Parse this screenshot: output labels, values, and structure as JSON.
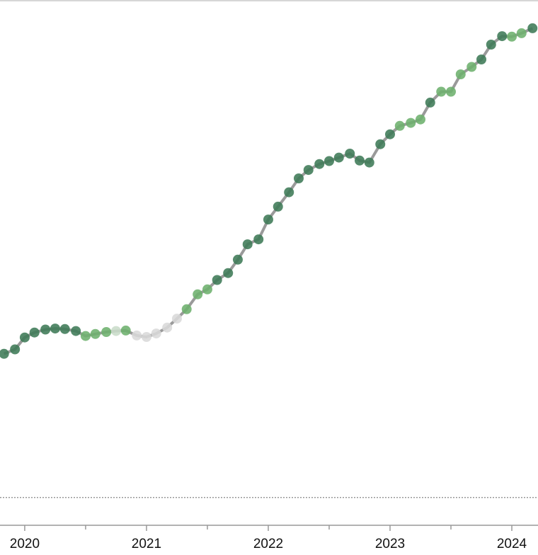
{
  "chart_data": {
    "type": "line",
    "x": [
      2019.83,
      2019.92,
      2020.0,
      2020.08,
      2020.17,
      2020.25,
      2020.33,
      2020.42,
      2020.5,
      2020.58,
      2020.67,
      2020.75,
      2020.83,
      2020.92,
      2021.0,
      2021.08,
      2021.17,
      2021.25,
      2021.33,
      2021.42,
      2021.5,
      2021.58,
      2021.67,
      2021.75,
      2021.83,
      2021.92,
      2022.0,
      2022.08,
      2022.17,
      2022.25,
      2022.33,
      2022.42,
      2022.5,
      2022.58,
      2022.67,
      2022.75,
      2022.83,
      2022.92,
      2023.0,
      2023.08,
      2023.17,
      2023.25,
      2023.33,
      2023.42,
      2023.5,
      2023.58,
      2023.67,
      2023.75,
      2023.83,
      2023.92,
      2024.0,
      2024.08,
      2024.17
    ],
    "values": [
      29.0,
      29.9,
      32.3,
      33.3,
      33.9,
      34.1,
      34.0,
      33.6,
      32.6,
      33.0,
      33.4,
      33.6,
      33.7,
      32.7,
      32.4,
      33.1,
      34.3,
      36.1,
      38.0,
      41.0,
      42.0,
      43.9,
      45.3,
      48.0,
      51.1,
      52.1,
      56.1,
      58.7,
      61.6,
      64.4,
      66.1,
      67.3,
      67.9,
      68.6,
      69.4,
      68.0,
      67.6,
      71.3,
      73.3,
      75.0,
      75.6,
      76.3,
      79.7,
      81.9,
      81.9,
      85.4,
      86.9,
      88.4,
      91.4,
      93.1,
      93.0,
      93.7,
      94.7
    ],
    "line_color": "#9a9a9a",
    "point_colors": [
      "#3d7a56",
      "#3d7a56",
      "#3d7a56",
      "#3d7a56",
      "#3d7a56",
      "#3d7a56",
      "#3d7a56",
      "#3d7a56",
      "#6db06d",
      "#6db06d",
      "#6db06d",
      "#c9dcc9",
      "#6db06d",
      "#d9d9d9",
      "#d9d9d9",
      "#d9d9d9",
      "#d9d9d9",
      "#d9d9d9",
      "#6db06d",
      "#6db06d",
      "#6db06d",
      "#3d7a56",
      "#3d7a56",
      "#3d7a56",
      "#3d7a56",
      "#3d7a56",
      "#3d7a56",
      "#3d7a56",
      "#3d7a56",
      "#3d7a56",
      "#3d7a56",
      "#3d7a56",
      "#3d7a56",
      "#3d7a56",
      "#3d7a56",
      "#3d7a56",
      "#3d7a56",
      "#3d7a56",
      "#3d7a56",
      "#6db06d",
      "#6db06d",
      "#6db06d",
      "#3d7a56",
      "#6db06d",
      "#6db06d",
      "#6db06d",
      "#6db06d",
      "#3d7a56",
      "#3d7a56",
      "#3d7a56",
      "#6db06d",
      "#6db06d",
      "#3d7a56"
    ],
    "xlim": [
      2019.797,
      2024.215
    ],
    "xticks": [
      2020,
      2021,
      2022,
      2023,
      2024
    ],
    "ylim": [
      -5.6,
      100.4
    ],
    "zero_line": true
  }
}
